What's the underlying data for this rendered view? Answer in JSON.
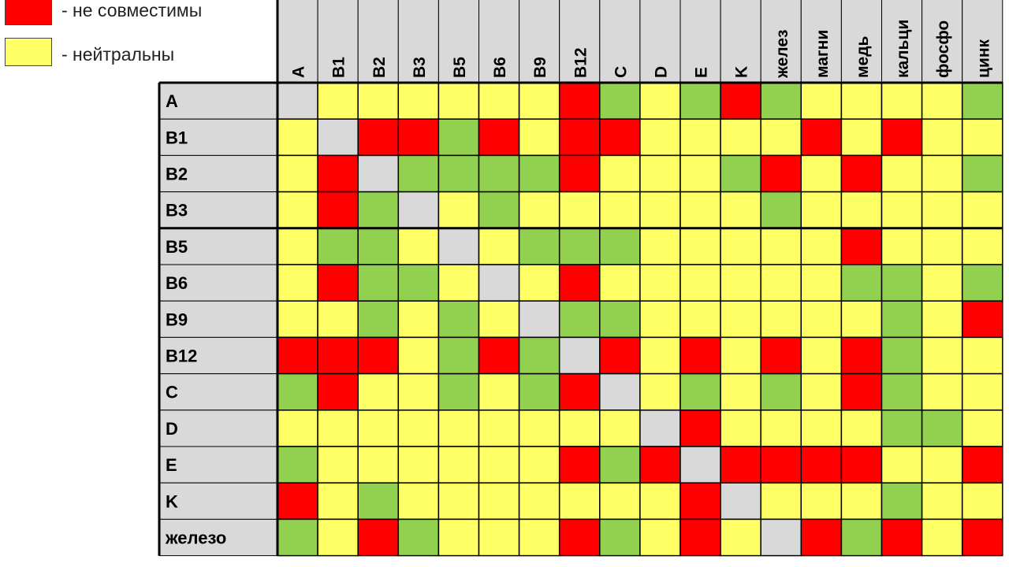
{
  "legend": {
    "incompatible": {
      "label": "- не совместимы",
      "color": "#ff0000"
    },
    "neutral": {
      "label": "- нейтральны",
      "color": "#ffff66"
    }
  },
  "colors": {
    "compatible": "#92d050",
    "incompatible": "#ff0000",
    "neutral": "#ffff66",
    "self": "#d9d9d9",
    "header_bg": "#d9d9d9"
  },
  "chart_data": {
    "type": "heatmap",
    "columns": [
      "A",
      "B1",
      "B2",
      "B3",
      "B5",
      "B6",
      "B9",
      "B12",
      "C",
      "D",
      "E",
      "K",
      "желез",
      "магни",
      "медь",
      "кальци",
      "фосфо",
      "цинк"
    ],
    "rows": [
      "A",
      "B1",
      "B2",
      "B3",
      "B5",
      "B6",
      "B9",
      "B12",
      "C",
      "D",
      "E",
      "K",
      "железо"
    ],
    "value_legend": {
      "g": "compatible",
      "r": "incompatible",
      "y": "neutral",
      "x": "self"
    },
    "matrix": [
      [
        "x",
        "y",
        "y",
        "y",
        "y",
        "y",
        "y",
        "r",
        "g",
        "y",
        "g",
        "r",
        "g",
        "y",
        "y",
        "y",
        "y",
        "g"
      ],
      [
        "y",
        "x",
        "r",
        "r",
        "g",
        "r",
        "y",
        "r",
        "r",
        "y",
        "y",
        "y",
        "y",
        "r",
        "y",
        "r",
        "y",
        "y"
      ],
      [
        "y",
        "r",
        "x",
        "g",
        "g",
        "g",
        "g",
        "r",
        "y",
        "y",
        "y",
        "g",
        "r",
        "y",
        "r",
        "y",
        "y",
        "g"
      ],
      [
        "y",
        "r",
        "g",
        "x",
        "y",
        "g",
        "y",
        "y",
        "y",
        "y",
        "y",
        "y",
        "g",
        "y",
        "y",
        "y",
        "y",
        "y"
      ],
      [
        "y",
        "g",
        "g",
        "y",
        "x",
        "y",
        "g",
        "g",
        "g",
        "y",
        "y",
        "y",
        "y",
        "y",
        "r",
        "y",
        "y",
        "y"
      ],
      [
        "y",
        "r",
        "g",
        "g",
        "y",
        "x",
        "y",
        "r",
        "y",
        "y",
        "y",
        "y",
        "y",
        "y",
        "g",
        "g",
        "y",
        "g"
      ],
      [
        "y",
        "y",
        "g",
        "y",
        "g",
        "y",
        "x",
        "g",
        "g",
        "y",
        "y",
        "y",
        "y",
        "y",
        "y",
        "g",
        "y",
        "r"
      ],
      [
        "r",
        "r",
        "r",
        "y",
        "g",
        "r",
        "g",
        "x",
        "r",
        "y",
        "r",
        "y",
        "r",
        "y",
        "r",
        "g",
        "y",
        "y"
      ],
      [
        "g",
        "r",
        "y",
        "y",
        "g",
        "y",
        "g",
        "r",
        "x",
        "y",
        "g",
        "y",
        "g",
        "y",
        "r",
        "g",
        "y",
        "y"
      ],
      [
        "y",
        "y",
        "y",
        "y",
        "y",
        "y",
        "y",
        "y",
        "y",
        "x",
        "r",
        "y",
        "y",
        "y",
        "y",
        "g",
        "g",
        "y"
      ],
      [
        "g",
        "y",
        "y",
        "y",
        "y",
        "y",
        "y",
        "r",
        "g",
        "r",
        "x",
        "r",
        "r",
        "r",
        "r",
        "y",
        "y",
        "r"
      ],
      [
        "r",
        "y",
        "g",
        "y",
        "y",
        "y",
        "y",
        "y",
        "y",
        "y",
        "r",
        "x",
        "y",
        "y",
        "y",
        "g",
        "y",
        "y"
      ],
      [
        "g",
        "y",
        "r",
        "g",
        "y",
        "y",
        "y",
        "r",
        "g",
        "y",
        "r",
        "y",
        "x",
        "r",
        "g",
        "r",
        "y",
        "r"
      ]
    ]
  }
}
